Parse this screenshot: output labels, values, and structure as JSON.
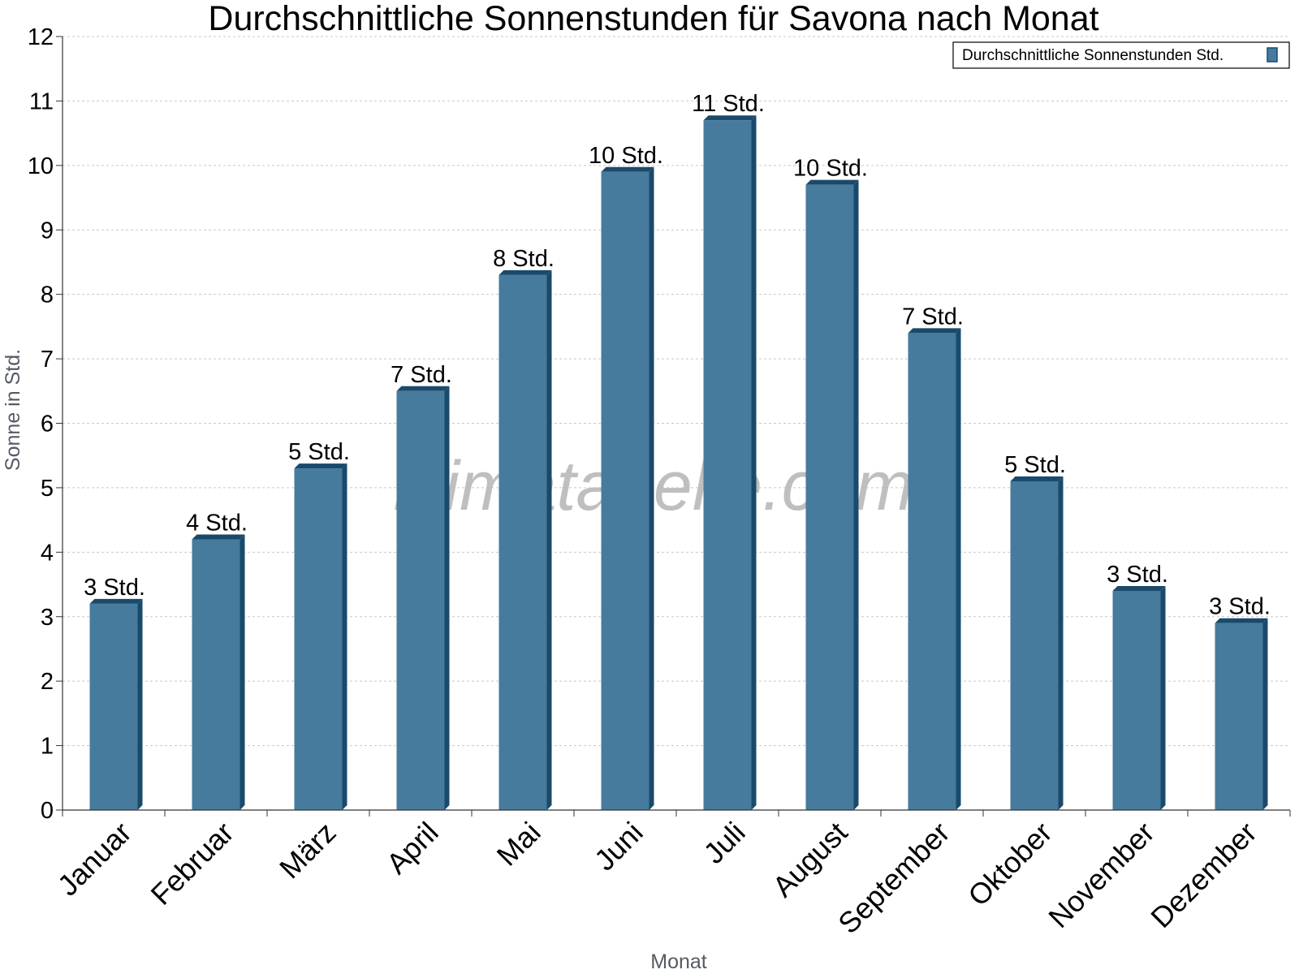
{
  "chart_data": {
    "type": "bar",
    "title": "Durchschnittliche Sonnenstunden für Savona nach Monat",
    "xlabel": "Monat",
    "ylabel": "Sonne in Std.",
    "ylim": [
      0,
      12
    ],
    "yticks": [
      "0",
      "1",
      "2",
      "3",
      "4",
      "5",
      "6",
      "7",
      "8",
      "9",
      "10",
      "11",
      "12"
    ],
    "grid": true,
    "legend_position": "top-right",
    "categories": [
      "Januar",
      "Februar",
      "März",
      "April",
      "Mai",
      "Juni",
      "Juli",
      "August",
      "September",
      "Oktober",
      "November",
      "Dezember"
    ],
    "series": [
      {
        "name": "Durchschnittliche Sonnenstunden Std.",
        "values": [
          3.2,
          4.2,
          5.3,
          6.5,
          8.3,
          9.9,
          10.7,
          9.7,
          7.4,
          5.1,
          3.4,
          2.9
        ],
        "labels": [
          "3 Std.",
          "4 Std.",
          "5 Std.",
          "7 Std.",
          "8 Std.",
          "10 Std.",
          "11 Std.",
          "10 Std.",
          "7 Std.",
          "5 Std.",
          "3 Std.",
          "3 Std."
        ]
      }
    ],
    "colors": {
      "bar_front": "#467b9e",
      "bar_side": "#1a4a6b",
      "grid": "#c8c8c8"
    }
  },
  "watermark": "klimatabelle.com"
}
